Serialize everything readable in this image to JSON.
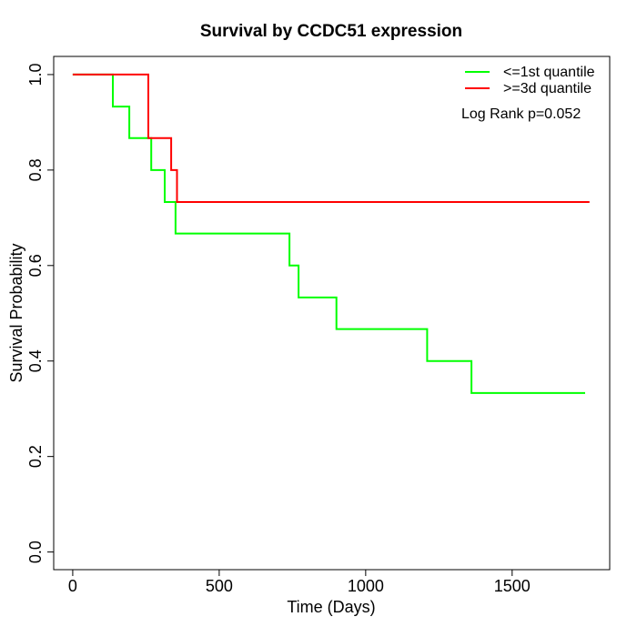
{
  "chart_data": {
    "type": "line",
    "subtype": "kaplan-meier-step",
    "title": "Survival by CCDC51 expression",
    "xlabel": "Time (Days)",
    "ylabel": "Survival Probability",
    "x_ticks": [
      0,
      500,
      1000,
      1500
    ],
    "y_ticks": [
      0.0,
      0.2,
      0.4,
      0.6,
      0.8,
      1.0
    ],
    "xlim": [
      -65,
      1833
    ],
    "ylim": [
      -0.037,
      1.038
    ],
    "grid": false,
    "log_rank_p": 0.052,
    "legend": {
      "position": "top-right",
      "entries": [
        {
          "label": "<=1st quantile",
          "color": "#00FF00"
        },
        {
          "label": ">=3d quantile",
          "color": "#FF0000"
        }
      ],
      "note": "Log Rank p=0.052"
    },
    "series": [
      {
        "name": "<=1st quantile",
        "color": "#00FF00",
        "points": [
          [
            0,
            1.0
          ],
          [
            137,
            0.933
          ],
          [
            193,
            0.867
          ],
          [
            268,
            0.8
          ],
          [
            314,
            0.733
          ],
          [
            351,
            0.667
          ],
          [
            740,
            0.6
          ],
          [
            771,
            0.533
          ],
          [
            900,
            0.467
          ],
          [
            1210,
            0.4
          ],
          [
            1361,
            0.333
          ],
          [
            1749,
            0.333
          ]
        ]
      },
      {
        "name": ">=3d quantile",
        "color": "#FF0000",
        "points": [
          [
            0,
            1.0
          ],
          [
            258,
            0.867
          ],
          [
            336,
            0.8
          ],
          [
            356,
            0.733
          ],
          [
            1764,
            0.733
          ]
        ]
      }
    ]
  }
}
